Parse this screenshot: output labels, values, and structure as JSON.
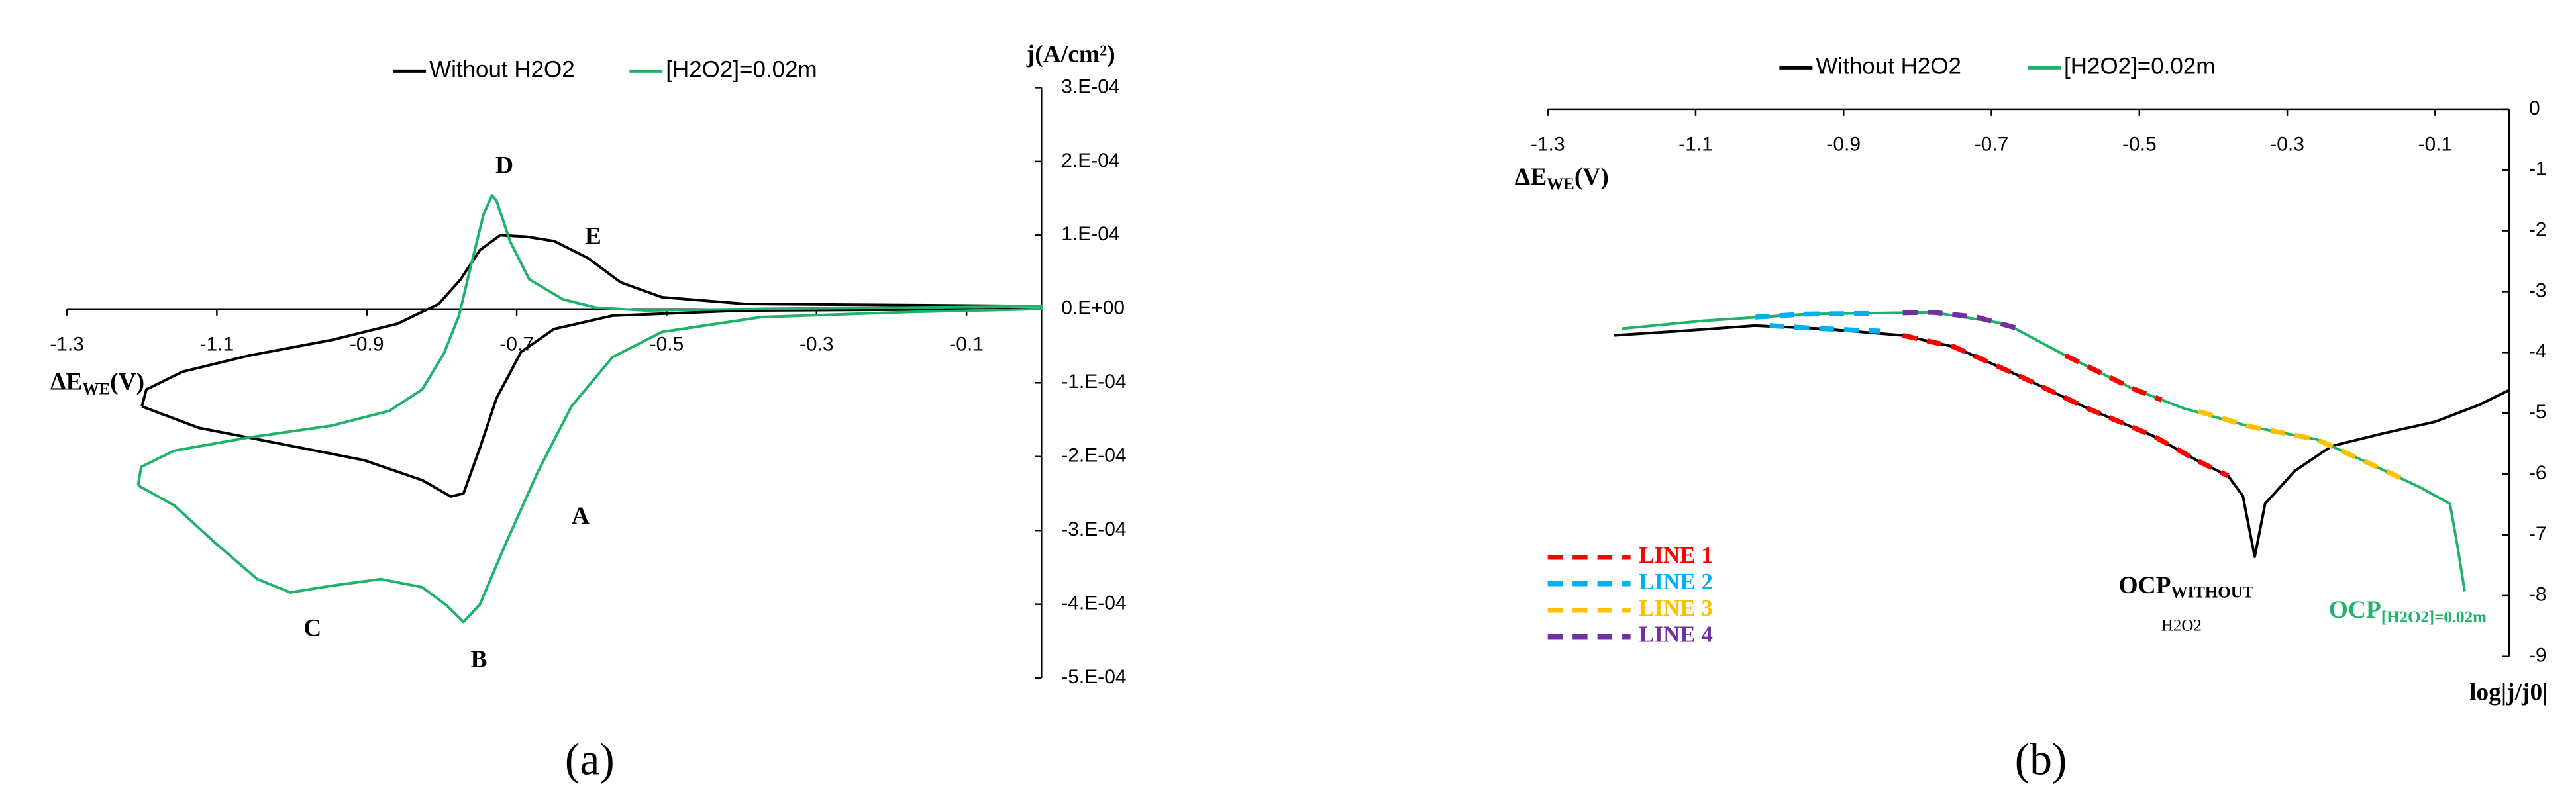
{
  "chart_data": [
    {
      "type": "line",
      "xlabel": {
        "text": "ΔE",
        "sub": "WE",
        "after": "(V)"
      },
      "ylabel": "j(A/cm²)",
      "panel": "(a)",
      "xlim": [
        -1.3,
        0
      ],
      "ylim": [
        -0.0005,
        0.0003
      ],
      "xticks": [
        -1.3,
        -1.1,
        -0.9,
        -0.7,
        -0.5,
        -0.3,
        -0.1
      ],
      "yticks": [
        {
          "value": 0.0003,
          "label": "3.E-04"
        },
        {
          "value": 0.0002,
          "label": "2.E-04"
        },
        {
          "value": 0.0001,
          "label": "1.E-04"
        },
        {
          "value": 0,
          "label": "0.E+00"
        },
        {
          "value": -0.0001,
          "label": "-1.E-04"
        },
        {
          "value": -0.0002,
          "label": "-2.E-04"
        },
        {
          "value": -0.0003,
          "label": "-3.E-04"
        },
        {
          "value": -0.0004,
          "label": "-4.E-04"
        },
        {
          "value": -0.0005,
          "label": "-5.E-04"
        }
      ],
      "series": [
        {
          "name": "Without H2O2",
          "color": "#000000",
          "legend": "top",
          "x": [
            -1.2,
            -1.124,
            -1.013,
            -0.903,
            -0.826,
            -0.788,
            -0.771,
            -0.749,
            -0.727,
            -0.694,
            -0.65,
            -0.572,
            -0.396,
            0,
            0,
            -0.396,
            -0.506,
            -0.561,
            -0.605,
            -0.65,
            -0.687,
            -0.722,
            -0.749,
            -0.775,
            -0.804,
            -0.859,
            -0.947,
            -1.057,
            -1.146,
            -1.194,
            -1.2
          ],
          "values": [
            -0.000132,
            -0.000161,
            -0.000183,
            -0.000205,
            -0.000232,
            -0.000254,
            -0.00025,
            -0.000188,
            -0.000121,
            -5.8e-05,
            -2.7e-05,
            -9e-06,
            -2e-06,
            0,
            4e-06,
            7e-06,
            1.6e-05,
            3.6e-05,
            6.9e-05,
            9.2e-05,
            9.8e-05,
            0.0001,
            8e-05,
            4e-05,
            7e-06,
            -2e-05,
            -4.2e-05,
            -6.3e-05,
            -8.5e-05,
            -0.000109,
            -0.000132
          ]
        },
        {
          "name": "[H2O2]=0.02m",
          "color": "#1db36a",
          "legend": "top",
          "x": [
            -1.205,
            -1.157,
            -1.102,
            -1.046,
            -1.002,
            -0.947,
            -0.881,
            -0.826,
            -0.793,
            -0.771,
            -0.749,
            -0.716,
            -0.672,
            -0.627,
            -0.572,
            -0.506,
            -0.374,
            -0.175,
            0,
            0,
            -0.396,
            -0.528,
            -0.594,
            -0.638,
            -0.683,
            -0.709,
            -0.727,
            -0.733,
            -0.744,
            -0.76,
            -0.777,
            -0.797,
            -0.826,
            -0.87,
            -0.947,
            -1.057,
            -1.157,
            -1.201,
            -1.205
          ],
          "values": [
            -0.000239,
            -0.000266,
            -0.000317,
            -0.000366,
            -0.000384,
            -0.000375,
            -0.000366,
            -0.000377,
            -0.000402,
            -0.000424,
            -0.0004,
            -0.000321,
            -0.000221,
            -0.000132,
            -6.5e-05,
            -3.1e-05,
            -1.1e-05,
            -4e-06,
            0,
            4e-06,
            0,
            -2e-06,
            2e-06,
            1.3e-05,
            4e-05,
            9.2e-05,
            0.000147,
            0.000154,
            0.000129,
            6.3e-05,
            -9e-06,
            -6e-05,
            -0.000109,
            -0.000138,
            -0.000158,
            -0.000174,
            -0.000192,
            -0.000214,
            -0.000239
          ]
        }
      ],
      "annotations": [
        {
          "text": "A"
        },
        {
          "text": "B"
        },
        {
          "text": "C"
        },
        {
          "text": "D"
        },
        {
          "text": "E"
        }
      ]
    },
    {
      "type": "line",
      "xlabel": {
        "text": "ΔE",
        "sub": "WE",
        "after": "(V)"
      },
      "ylabel": "log|j/j0|",
      "panel": "(b)",
      "xlim": [
        -1.3,
        0
      ],
      "ylim": [
        -9,
        0
      ],
      "xticks": [
        -1.3,
        -1.1,
        -0.9,
        -0.7,
        -0.5,
        -0.3,
        -0.1
      ],
      "yticks": [
        0,
        -1,
        -2,
        -3,
        -4,
        -5,
        -6,
        -7,
        -8,
        -9
      ],
      "series": [
        {
          "name": "Without H2O2",
          "color": "#000000",
          "legend": "top",
          "x": [
            -1.21,
            -1.11,
            -1.02,
            -0.93,
            -0.82,
            -0.75,
            -0.66,
            -0.57,
            -0.48,
            -0.42,
            -0.38,
            -0.36,
            -0.344,
            -0.33,
            -0.29,
            -0.24,
            -0.17,
            -0.1,
            -0.04,
            0
          ],
          "values": [
            -3.72,
            -3.64,
            -3.56,
            -3.61,
            -3.72,
            -3.91,
            -4.4,
            -4.92,
            -5.38,
            -5.79,
            -6.03,
            -6.36,
            -7.36,
            -6.49,
            -5.95,
            -5.54,
            -5.33,
            -5.14,
            -4.86,
            -4.62
          ]
        },
        {
          "name": "[H2O2]=0.02m",
          "color": "#1db36a",
          "legend": "top",
          "x": [
            -1.2,
            -1.09,
            -0.95,
            -0.78,
            -0.68,
            -0.6,
            -0.51,
            -0.44,
            -0.35,
            -0.26,
            -0.19,
            -0.12,
            -0.08,
            -0.07,
            -0.06
          ],
          "values": [
            -3.61,
            -3.48,
            -3.37,
            -3.34,
            -3.53,
            -4.05,
            -4.59,
            -4.92,
            -5.22,
            -5.43,
            -5.82,
            -6.22,
            -6.49,
            -7.17,
            -7.93
          ]
        },
        {
          "name": "LINE 1",
          "color": "#ff0000",
          "legend": "lower left",
          "dashed": true,
          "x": [
            -0.82,
            -0.75,
            -0.66,
            -0.57,
            -0.48,
            -0.42,
            -0.38,
            null,
            -0.6,
            -0.51,
            -0.47
          ],
          "values": [
            -3.72,
            -3.91,
            -4.4,
            -4.92,
            -5.38,
            -5.79,
            -6.03,
            null,
            -4.05,
            -4.59,
            -4.78
          ]
        },
        {
          "name": "LINE 2",
          "color": "#00b0f0",
          "legend": "lower left",
          "dashed": true,
          "x": [
            -1.02,
            -0.95,
            -0.86,
            null,
            -1.0,
            -0.93,
            -0.85
          ],
          "values": [
            -3.42,
            -3.37,
            -3.36,
            null,
            -3.56,
            -3.61,
            -3.65
          ]
        },
        {
          "name": "LINE 3",
          "color": "#ffc000",
          "legend": "lower left",
          "dashed": true,
          "x": [
            -0.42,
            -0.35,
            -0.26,
            -0.19,
            -0.14
          ],
          "values": [
            -4.97,
            -5.22,
            -5.43,
            -5.82,
            -6.1
          ]
        },
        {
          "name": "LINE 4",
          "color": "#7030a0",
          "legend": "lower left",
          "dashed": true,
          "x": [
            -0.82,
            -0.78,
            -0.72,
            -0.66
          ],
          "values": [
            -3.35,
            -3.34,
            -3.42,
            -3.62
          ]
        }
      ],
      "annotations": [
        {
          "text": "OCP",
          "sub": "WITHOUT",
          "line2": "H2O2"
        },
        {
          "text": "OCP",
          "sub": "[H2O2]=0.02m"
        }
      ]
    }
  ]
}
